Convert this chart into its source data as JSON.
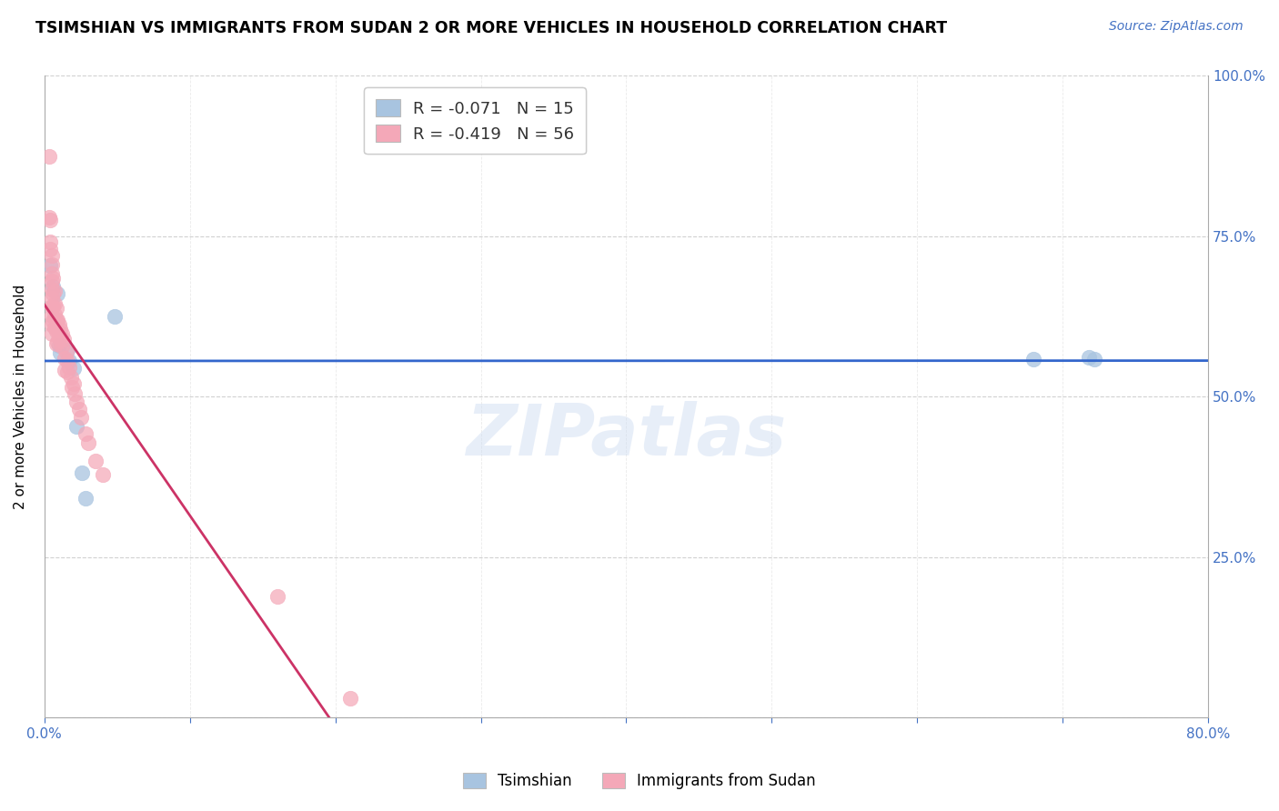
{
  "title": "TSIMSHIAN VS IMMIGRANTS FROM SUDAN 2 OR MORE VEHICLES IN HOUSEHOLD CORRELATION CHART",
  "source": "Source: ZipAtlas.com",
  "ylabel": "2 or more Vehicles in Household",
  "xlim": [
    0.0,
    0.8
  ],
  "ylim": [
    0.0,
    1.0
  ],
  "watermark": "ZIPatlas",
  "legend1_label": "R = -0.071   N = 15",
  "legend2_label": "R = -0.419   N = 56",
  "legend_bottom1": "Tsimshian",
  "legend_bottom2": "Immigrants from Sudan",
  "tsimshian_color": "#a8c4e0",
  "sudan_color": "#f4a8b8",
  "trendline_tsimshian_color": "#3366cc",
  "trendline_sudan_color": "#cc3366",
  "x_minor_ticks": [
    0.0,
    0.1,
    0.2,
    0.3,
    0.4,
    0.5,
    0.6,
    0.7,
    0.8
  ],
  "y_ticks": [
    0.0,
    0.25,
    0.5,
    0.75,
    1.0
  ],
  "y_tick_labels": [
    "",
    "25.0%",
    "50.0%",
    "75.0%",
    "100.0%"
  ],
  "tsimshian_x": [
    0.004,
    0.006,
    0.009,
    0.01,
    0.011,
    0.016,
    0.017,
    0.02,
    0.022,
    0.026,
    0.028,
    0.68,
    0.718,
    0.722,
    0.048
  ],
  "tsimshian_y": [
    0.705,
    0.672,
    0.66,
    0.58,
    0.568,
    0.572,
    0.555,
    0.545,
    0.453,
    0.382,
    0.342,
    0.558,
    0.562,
    0.558,
    0.625
  ],
  "sudan_x": [
    0.003,
    0.003,
    0.004,
    0.004,
    0.004,
    0.005,
    0.005,
    0.005,
    0.005,
    0.005,
    0.005,
    0.005,
    0.005,
    0.005,
    0.005,
    0.006,
    0.006,
    0.006,
    0.006,
    0.007,
    0.007,
    0.007,
    0.007,
    0.008,
    0.008,
    0.008,
    0.008,
    0.009,
    0.009,
    0.009,
    0.01,
    0.01,
    0.011,
    0.011,
    0.012,
    0.012,
    0.013,
    0.014,
    0.014,
    0.015,
    0.016,
    0.016,
    0.017,
    0.018,
    0.019,
    0.02,
    0.021,
    0.022,
    0.024,
    0.025,
    0.028,
    0.03,
    0.035,
    0.04,
    0.16,
    0.21
  ],
  "sudan_y": [
    0.875,
    0.78,
    0.775,
    0.742,
    0.73,
    0.72,
    0.706,
    0.692,
    0.68,
    0.667,
    0.653,
    0.64,
    0.626,
    0.612,
    0.598,
    0.685,
    0.66,
    0.64,
    0.618,
    0.665,
    0.645,
    0.628,
    0.608,
    0.638,
    0.62,
    0.602,
    0.582,
    0.62,
    0.604,
    0.586,
    0.612,
    0.592,
    0.605,
    0.588,
    0.598,
    0.578,
    0.59,
    0.56,
    0.542,
    0.57,
    0.555,
    0.538,
    0.546,
    0.53,
    0.515,
    0.52,
    0.505,
    0.492,
    0.48,
    0.468,
    0.442,
    0.428,
    0.4,
    0.378,
    0.188,
    0.03
  ],
  "trendline_ts_x0": 0.0,
  "trendline_ts_x1": 0.8,
  "trendline_sd_solid_x0": 0.0,
  "trendline_sd_solid_x1": 0.22,
  "trendline_sd_dash_x0": 0.22,
  "trendline_sd_dash_x1": 0.8
}
